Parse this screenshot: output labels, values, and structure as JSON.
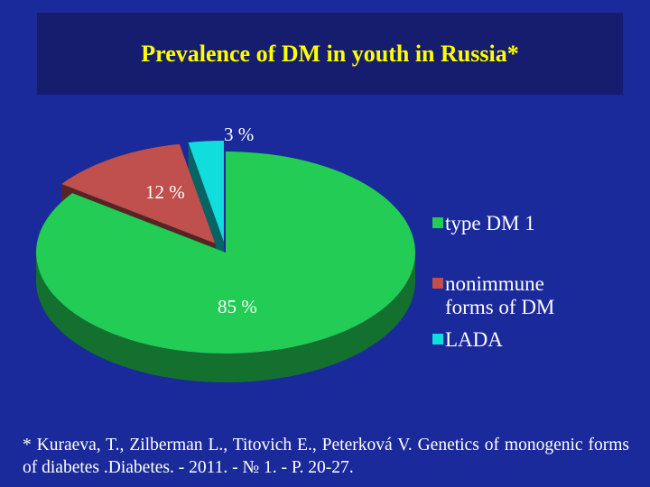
{
  "title": "Prevalence of DM in youth in Russia*",
  "chart_data": {
    "type": "pie",
    "style": "3d-exploded",
    "slices": [
      {
        "name": "type DM 1",
        "value": 85,
        "label": "85 %",
        "color": "#22cc55"
      },
      {
        "name": "nonimmune forms of DM",
        "value": 12,
        "label": "12 %",
        "color": "#c0504d"
      },
      {
        "name": "LADA",
        "value": 3,
        "label": "3 %",
        "color": "#11dddd"
      }
    ],
    "legend_position": "right"
  },
  "legend": [
    {
      "label": "type DM 1",
      "color": "#22cc55"
    },
    {
      "label": "nonimmune forms of DM",
      "color": "#c0504d"
    },
    {
      "label": "LADA",
      "color": "#11dddd"
    }
  ],
  "footnote": "* Kuraeva, T., Zilberman L., Titovich E., Peterková V. Genetics of monogenic forms of diabetes .Diabetes. - 2011. - № 1. - P. 20-27."
}
